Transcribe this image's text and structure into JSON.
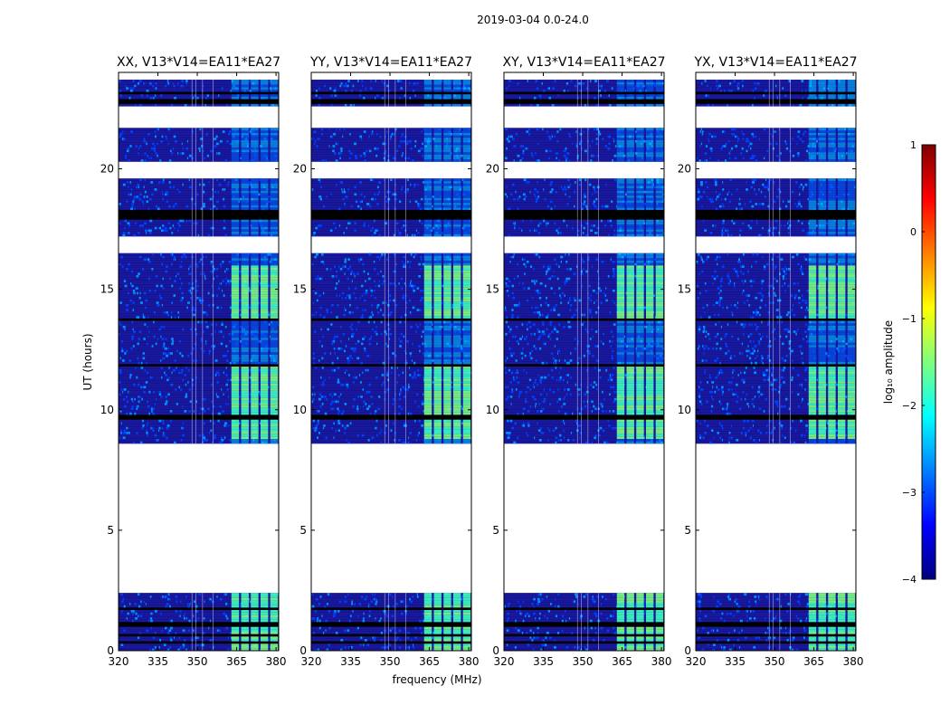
{
  "suptitle": "2019-03-04 0.0-24.0",
  "ylabel": "UT (hours)",
  "xlabel": "frequency (MHz)",
  "chart_data": {
    "type": "heatmap",
    "x_range": [
      320,
      381
    ],
    "x_ticks": [
      320,
      335,
      350,
      365,
      380
    ],
    "y_range": [
      0,
      24
    ],
    "y_ticks": [
      0,
      5,
      10,
      15,
      20
    ],
    "panels": [
      {
        "title": "XX, V13*V14=EA11*EA27",
        "show_y_ticks": true
      },
      {
        "title": "YY, V13*V14=EA11*EA27",
        "show_y_ticks": true
      },
      {
        "title": "XY, V13*V14=EA11*EA27",
        "show_y_ticks": true
      },
      {
        "title": "YX, V13*V14=EA11*EA27",
        "show_y_ticks": true
      }
    ],
    "data_intervals_ut_hours": [
      [
        0.0,
        2.4
      ],
      [
        8.6,
        23.7
      ]
    ],
    "blank_gaps_ut_hours": [
      [
        2.4,
        8.6
      ],
      [
        21.7,
        22.6
      ],
      [
        19.6,
        20.3
      ],
      [
        16.5,
        17.2
      ]
    ],
    "flagged_rows_ut_hours": [
      [
        0.3,
        0.4
      ],
      [
        0.62,
        0.7
      ],
      [
        1.0,
        1.25
      ],
      [
        1.75,
        1.78
      ],
      [
        9.6,
        9.75
      ],
      [
        11.75,
        11.85
      ],
      [
        13.7,
        13.75
      ],
      [
        17.9,
        18.3
      ],
      [
        22.7,
        22.9
      ],
      [
        23.1,
        23.2
      ]
    ],
    "bright_band_mhz": [
      363,
      378
    ],
    "colorbar": {
      "label": "log₁₀ amplitude",
      "range": [
        -4,
        1
      ],
      "ticks": [
        "−4",
        "−3",
        "−2",
        "−1",
        "0",
        "1"
      ],
      "colormap": "jet",
      "stops": [
        "#00007f",
        "#0000ff",
        "#007fff",
        "#00ffff",
        "#7fff7f",
        "#ffff00",
        "#ff7f00",
        "#ff0000",
        "#7f0000"
      ]
    }
  }
}
